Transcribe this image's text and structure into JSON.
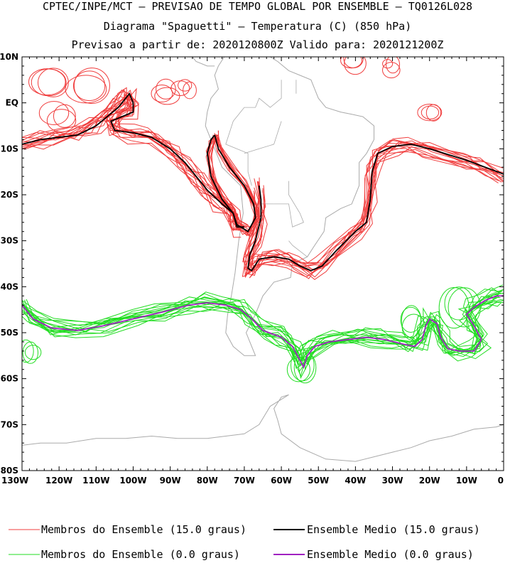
{
  "header": {
    "line1": "CPTEC/INPE/MCT — PREVISAO DE TEMPO GLOBAL POR ENSEMBLE — TQ0126L028",
    "line2": "Diagrama \"Spaguetti\" — Temperatura (C) (850 hPa)",
    "line3": "Previsao a partir de: 2020120800Z  Valido para: 2020121200Z"
  },
  "axes": {
    "lat_ticks": [
      "10N",
      "EQ",
      "10S",
      "20S",
      "30S",
      "40S",
      "50S",
      "60S",
      "70S",
      "80S"
    ],
    "lon_ticks": [
      "130W",
      "120W",
      "110W",
      "100W",
      "90W",
      "80W",
      "70W",
      "60W",
      "50W",
      "40W",
      "30W",
      "20W",
      "10W",
      "0"
    ],
    "lat_range": [
      10,
      -80
    ],
    "lon_range": [
      -130,
      0
    ]
  },
  "legend": {
    "members_15": "Membros do Ensemble (15.0 graus)",
    "mean_15": "Ensemble Medio (15.0 graus)",
    "members_0": "Membros do Ensemble (0.0 graus)",
    "mean_0": "Ensemble Medio (0.0 graus)"
  },
  "colors": {
    "members_15": "#f03c3c",
    "mean_15": "#000000",
    "members_0": "#22dd22",
    "mean_0": "#a020c0",
    "coastline": "#aaaaaa"
  },
  "contours": {
    "mean_15_upper": [
      [
        -130,
        -9
      ],
      [
        -125,
        -8
      ],
      [
        -120,
        -7.5
      ],
      [
        -115,
        -7
      ],
      [
        -110,
        -5
      ],
      [
        -107,
        -3
      ],
      [
        -104,
        -1
      ],
      [
        -102,
        1
      ],
      [
        -101,
        2
      ],
      [
        -100,
        0
      ],
      [
        -100,
        -2
      ],
      [
        -103,
        -3
      ],
      [
        -106,
        -4
      ],
      [
        -105,
        -6
      ],
      [
        -100,
        -6.5
      ],
      [
        -95,
        -7.5
      ],
      [
        -90,
        -10
      ],
      [
        -86,
        -13
      ],
      [
        -83,
        -16
      ],
      [
        -80,
        -19
      ],
      [
        -76,
        -22
      ],
      [
        -73,
        -24
      ],
      [
        -72,
        -27
      ],
      [
        -70,
        -27
      ]
    ],
    "mean_15_loop": [
      [
        -78,
        -7
      ],
      [
        -77,
        -10
      ],
      [
        -74,
        -14
      ],
      [
        -70,
        -18
      ],
      [
        -67.5,
        -22
      ],
      [
        -67,
        -25
      ],
      [
        -69,
        -28
      ],
      [
        -72,
        -26.5
      ],
      [
        -73,
        -24
      ],
      [
        -76,
        -21
      ],
      [
        -79,
        -16
      ],
      [
        -80,
        -11
      ],
      [
        -79,
        -8
      ],
      [
        -78,
        -7
      ]
    ],
    "mean_15_south": [
      [
        -66,
        -18
      ],
      [
        -65.5,
        -21
      ],
      [
        -65.5,
        -25
      ],
      [
        -67,
        -30
      ],
      [
        -68.5,
        -33
      ],
      [
        -69,
        -36
      ],
      [
        -68,
        -36.5
      ],
      [
        -66,
        -34
      ],
      [
        -62,
        -33.5
      ],
      [
        -58,
        -34
      ],
      [
        -55,
        -35.5
      ],
      [
        -52,
        -36.5
      ],
      [
        -49,
        -35.5
      ],
      [
        -45,
        -32
      ],
      [
        -40,
        -28
      ],
      [
        -37,
        -26
      ],
      [
        -36,
        -21
      ],
      [
        -35.5,
        -15
      ],
      [
        -34,
        -11
      ],
      [
        -30,
        -9.5
      ],
      [
        -25,
        -9
      ],
      [
        -20,
        -10
      ],
      [
        -10,
        -12.5
      ],
      [
        -5,
        -14
      ],
      [
        0,
        -15.5
      ]
    ],
    "mean_0": [
      [
        -130,
        -44
      ],
      [
        -127,
        -47
      ],
      [
        -122,
        -49
      ],
      [
        -115,
        -49.5
      ],
      [
        -108,
        -48.5
      ],
      [
        -100,
        -47
      ],
      [
        -92,
        -45.5
      ],
      [
        -85,
        -44
      ],
      [
        -80,
        -43.5
      ],
      [
        -75,
        -44
      ],
      [
        -71,
        -45
      ],
      [
        -68,
        -47
      ],
      [
        -65,
        -49.5
      ],
      [
        -60,
        -51
      ],
      [
        -57,
        -53
      ],
      [
        -55,
        -56
      ],
      [
        -54,
        -57.5
      ],
      [
        -53,
        -55
      ],
      [
        -51,
        -53
      ],
      [
        -47,
        -52
      ],
      [
        -42,
        -51.5
      ],
      [
        -37,
        -51
      ],
      [
        -32,
        -51.5
      ],
      [
        -27,
        -52.5
      ],
      [
        -24,
        -53
      ],
      [
        -22,
        -51.5
      ],
      [
        -21,
        -48.5
      ],
      [
        -20,
        -47
      ],
      [
        -18,
        -48
      ],
      [
        -17,
        -51
      ],
      [
        -15,
        -53.5
      ],
      [
        -12,
        -54
      ],
      [
        -8,
        -54
      ],
      [
        -6,
        -51.5
      ],
      [
        -8,
        -48.5
      ],
      [
        -10,
        -46
      ],
      [
        -8,
        -44.5
      ],
      [
        -5,
        -43
      ],
      [
        -2,
        -42
      ],
      [
        0,
        -42
      ]
    ],
    "land_south_america": [
      [
        -80,
        -2
      ],
      [
        -80.5,
        -5
      ],
      [
        -79,
        -8
      ],
      [
        -76,
        -14
      ],
      [
        -71,
        -18
      ],
      [
        -70.3,
        -24
      ],
      [
        -71.5,
        -30
      ],
      [
        -72.5,
        -37
      ],
      [
        -73.5,
        -42
      ],
      [
        -74.5,
        -46
      ],
      [
        -75,
        -50
      ],
      [
        -73,
        -53
      ],
      [
        -70,
        -55
      ],
      [
        -67,
        -55
      ],
      [
        -68.5,
        -52
      ],
      [
        -69.5,
        -50
      ],
      [
        -67,
        -46
      ],
      [
        -65,
        -42
      ],
      [
        -62,
        -39
      ],
      [
        -57.5,
        -38
      ],
      [
        -57,
        -35
      ],
      [
        -53,
        -33.5
      ],
      [
        -51,
        -31
      ],
      [
        -48.5,
        -28
      ],
      [
        -48,
        -25
      ],
      [
        -44,
        -23
      ],
      [
        -41,
        -22
      ],
      [
        -39,
        -18
      ],
      [
        -39,
        -13
      ],
      [
        -37,
        -11
      ],
      [
        -35,
        -8
      ],
      [
        -35,
        -5
      ],
      [
        -38,
        -3
      ],
      [
        -41,
        -2.5
      ],
      [
        -44,
        -2
      ],
      [
        -48,
        -1
      ],
      [
        -50,
        1
      ],
      [
        -52,
        5
      ],
      [
        -55,
        6
      ],
      [
        -58,
        7
      ],
      [
        -61,
        9
      ],
      [
        -64,
        10.5
      ],
      [
        -68,
        10.5
      ],
      [
        -72,
        11
      ],
      [
        -75,
        10.5
      ],
      [
        -77,
        8
      ],
      [
        -78,
        6
      ],
      [
        -77,
        3
      ],
      [
        -79,
        1
      ],
      [
        -80,
        -2
      ]
    ],
    "land_central_america": [
      [
        -78,
        8
      ],
      [
        -80,
        8
      ],
      [
        -83,
        9
      ],
      [
        -85,
        11
      ],
      [
        -87,
        13
      ],
      [
        -91,
        14
      ],
      [
        -94,
        16
      ],
      [
        -97,
        16
      ],
      [
        -105,
        20
      ],
      [
        -106,
        23
      ],
      [
        -110,
        25
      ]
    ],
    "land_antarctica": [
      [
        -130,
        -74.5
      ],
      [
        -125,
        -74
      ],
      [
        -118,
        -74
      ],
      [
        -110,
        -73
      ],
      [
        -102,
        -73
      ],
      [
        -95,
        -72.5
      ],
      [
        -88,
        -73
      ],
      [
        -80,
        -73
      ],
      [
        -75,
        -72.5
      ],
      [
        -70,
        -72
      ],
      [
        -66,
        -70
      ],
      [
        -63,
        -66
      ],
      [
        -58,
        -63.5
      ],
      [
        -60,
        -64
      ],
      [
        -62,
        -66.5
      ],
      [
        -61,
        -69
      ],
      [
        -60,
        -72
      ],
      [
        -55,
        -75
      ],
      [
        -48,
        -77.5
      ],
      [
        -40,
        -78
      ],
      [
        -35,
        -77
      ],
      [
        -30,
        -76
      ],
      [
        -25,
        -75
      ],
      [
        -20,
        -73.5
      ],
      [
        -14,
        -72.5
      ],
      [
        -8,
        -71
      ],
      [
        -2,
        -70.5
      ],
      [
        0,
        -70
      ]
    ],
    "land_africa": [
      [
        0,
        5
      ],
      [
        0,
        8
      ]
    ],
    "borders": [
      [
        [
          -70,
          -1
        ],
        [
          -73,
          -4
        ],
        [
          -75,
          -9
        ],
        [
          -69,
          -11
        ],
        [
          -69,
          -15
        ],
        [
          -68,
          -18
        ]
      ],
      [
        [
          -60,
          -4
        ],
        [
          -62,
          -9
        ],
        [
          -66,
          -10
        ],
        [
          -70,
          -11
        ]
      ],
      [
        [
          -58,
          -17
        ],
        [
          -58,
          -20
        ],
        [
          -55,
          -24
        ],
        [
          -54,
          -26
        ],
        [
          -57,
          -27
        ],
        [
          -58,
          -22
        ],
        [
          -62,
          -22
        ]
      ],
      [
        [
          -62,
          -22
        ],
        [
          -65,
          -22
        ],
        [
          -68,
          -22
        ]
      ],
      [
        [
          -53,
          -33.5
        ],
        [
          -57,
          -31
        ],
        [
          -58,
          -30
        ]
      ],
      [
        [
          -60,
          5
        ],
        [
          -60,
          1
        ],
        [
          -63,
          -1
        ],
        [
          -66,
          1
        ],
        [
          -67,
          -1
        ],
        [
          -70,
          -1
        ]
      ],
      [
        [
          -56,
          5
        ],
        [
          -56,
          2
        ]
      ]
    ]
  }
}
